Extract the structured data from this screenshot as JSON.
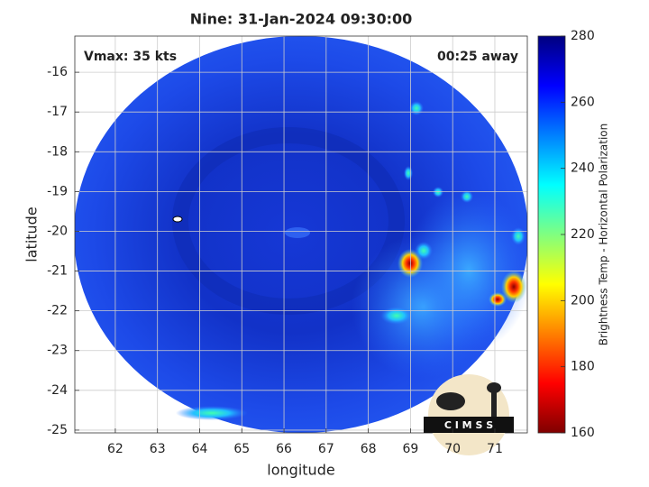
{
  "chart_data": {
    "type": "image",
    "title": "Nine: 31-Jan-2024 09:30:00",
    "annotations": [
      "Vmax: 35 kts",
      "00:25 away"
    ],
    "x_label": "longitude",
    "y_label": "latitude",
    "xlim": [
      61.04,
      71.77
    ],
    "xticks": [
      62,
      63,
      64,
      65,
      66,
      67,
      68,
      69,
      70,
      71
    ],
    "ylim": [
      -25.07,
      -15.09
    ],
    "yticks": [
      -25,
      -24,
      -23,
      -22,
      -21,
      -20,
      -19,
      -18,
      -17,
      -16
    ],
    "grid": true,
    "colorbar": {
      "label": "Brightness Temp - Horizontal Polarization",
      "lim": [
        160,
        280
      ],
      "ticks": [
        160,
        180,
        200,
        220,
        240,
        260,
        280
      ],
      "colormap": [
        "#7f0000",
        "#ff0000",
        "#ff8000",
        "#ffff00",
        "#80ff80",
        "#00ffff",
        "#0080ff",
        "#0000ff",
        "#00007f"
      ]
    },
    "logo": "C I M S S"
  }
}
